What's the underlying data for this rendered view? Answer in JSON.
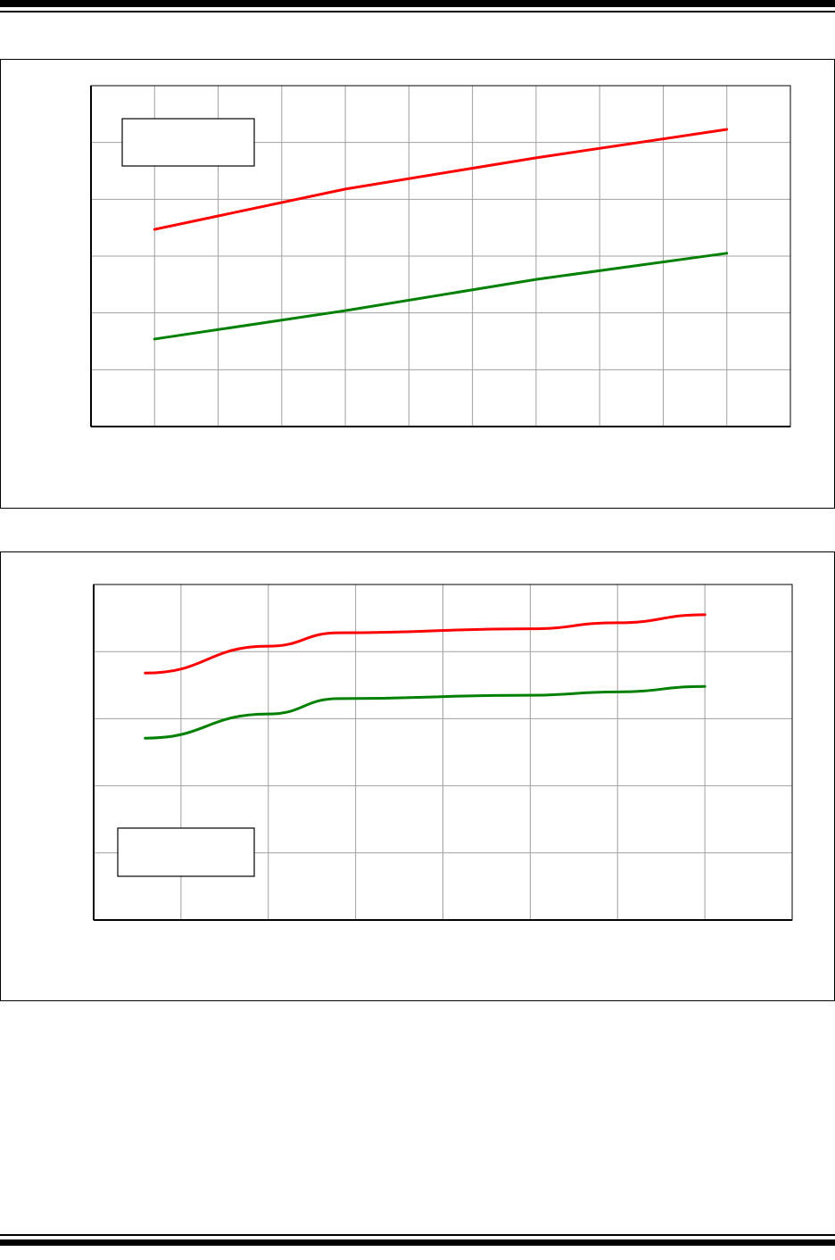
{
  "colors": {
    "series_a": "#ff0000",
    "series_b": "#008000",
    "grid": "#a0a0a0",
    "frame": "#000000"
  },
  "chart_data": [
    {
      "type": "line",
      "title": "",
      "xlabel": "",
      "ylabel": "",
      "xlim": [
        0,
        11
      ],
      "ylim": [
        0,
        6
      ],
      "grid": true,
      "legend": "top-left",
      "series": [
        {
          "color": "#ff0000",
          "x": [
            1,
            4,
            7,
            10
          ],
          "y": [
            3.47,
            4.18,
            4.73,
            5.23
          ]
        },
        {
          "color": "#008000",
          "x": [
            1,
            4,
            7,
            10
          ],
          "y": [
            1.54,
            2.04,
            2.59,
            3.05
          ]
        }
      ]
    },
    {
      "type": "line",
      "title": "",
      "xlabel": "",
      "ylabel": "",
      "xlim": [
        0,
        8
      ],
      "ylim": [
        0,
        5
      ],
      "grid": true,
      "legend": "bottom-left",
      "series": [
        {
          "color": "#ff0000",
          "x": [
            0.59,
            2,
            2.81,
            5,
            6,
            7
          ],
          "y": [
            3.68,
            4.08,
            4.28,
            4.34,
            4.43,
            4.55
          ]
        },
        {
          "color": "#008000",
          "x": [
            0.59,
            2,
            2.81,
            5,
            6,
            7
          ],
          "y": [
            2.71,
            3.07,
            3.3,
            3.35,
            3.4,
            3.48
          ]
        }
      ]
    }
  ]
}
